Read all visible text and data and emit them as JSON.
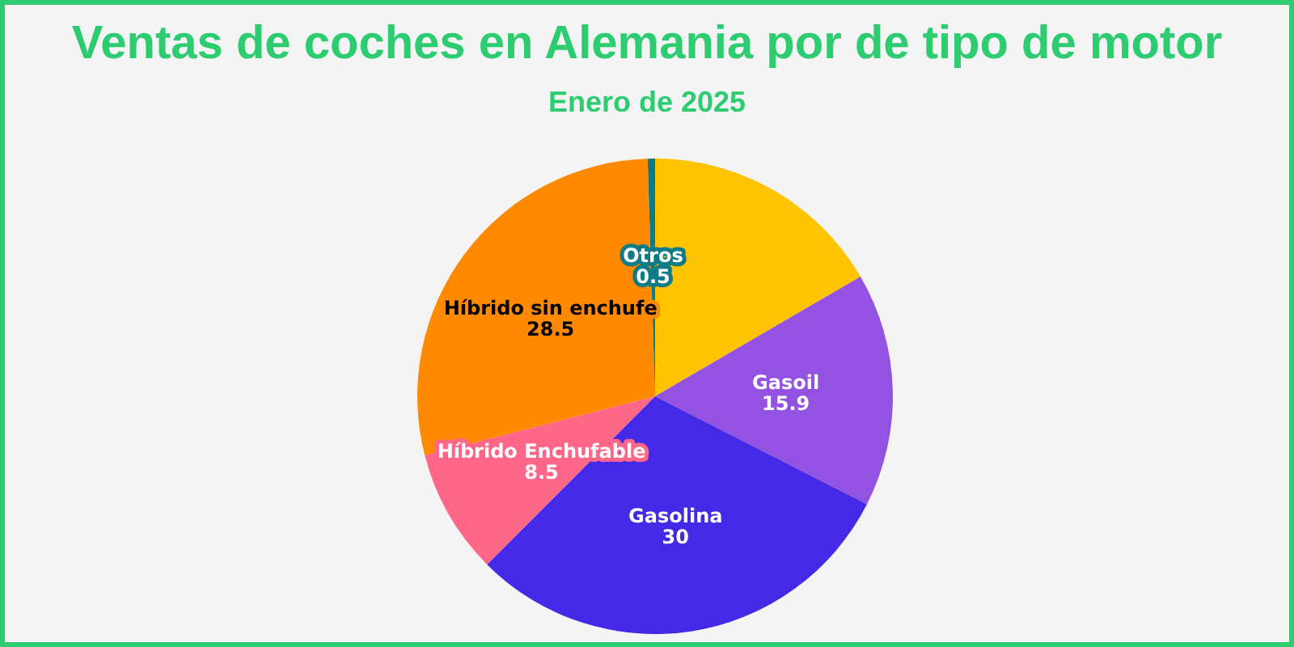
{
  "chart_data": {
    "type": "pie",
    "title": "Ventas de coches en Alemania por de tipo de motor",
    "subtitle": "Enero de 2025",
    "categories": [
      null,
      "Gasoil",
      "Gasolina",
      "Híbrido Enchufable",
      "Híbrido sin enchufe",
      "Otros"
    ],
    "values": [
      16.6,
      15.9,
      30,
      8.5,
      28.5,
      0.5
    ],
    "value_labels": [
      null,
      "15.9",
      "30",
      "8.5",
      "28.5",
      "0.5"
    ],
    "colors": [
      "#ffc300",
      "#9452e3",
      "#4429e6",
      "#ff6688",
      "#ff8a00",
      "#0e7c86"
    ]
  }
}
